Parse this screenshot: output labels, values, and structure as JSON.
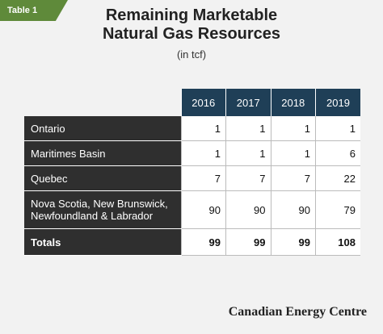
{
  "tag": "Table 1",
  "title_line1": "Remaining Marketable",
  "title_line2": "Natural Gas Resources",
  "subtitle": "(in tcf)",
  "columns": [
    "2016",
    "2017",
    "2018",
    "2019"
  ],
  "rows": [
    {
      "label_line1": "Ontario",
      "label_line2": "",
      "values": [
        "1",
        "1",
        "1",
        "1"
      ]
    },
    {
      "label_line1": "Maritimes Basin",
      "label_line2": "",
      "values": [
        "1",
        "1",
        "1",
        "6"
      ]
    },
    {
      "label_line1": "Quebec",
      "label_line2": "",
      "values": [
        "7",
        "7",
        "7",
        "22"
      ]
    },
    {
      "label_line1": "Nova Scotia, New Brunswick,",
      "label_line2": "Newfoundland & Labrador",
      "values": [
        "90",
        "90",
        "90",
        "79"
      ]
    },
    {
      "label_line1": "Totals",
      "label_line2": "",
      "values": [
        "99",
        "99",
        "99",
        "108"
      ]
    }
  ],
  "footer": "Canadian Energy Centre"
}
